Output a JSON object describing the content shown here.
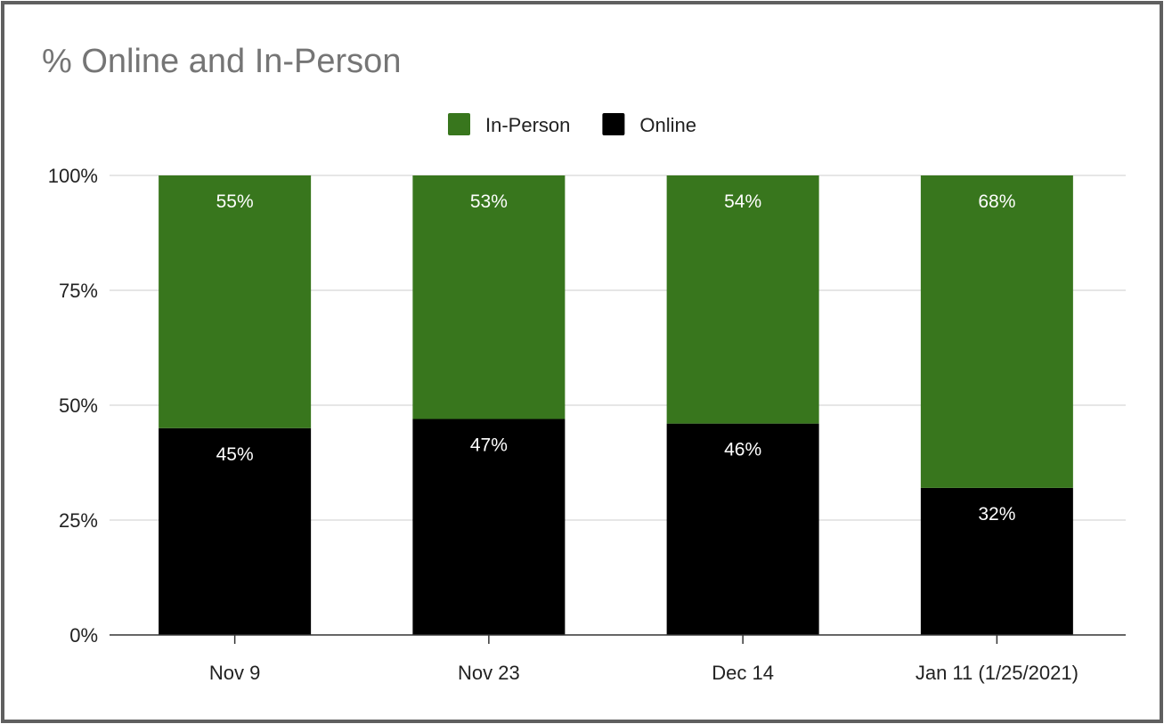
{
  "chart_data": {
    "type": "bar",
    "stacked": true,
    "title": "% Online and In-Person",
    "categories": [
      "Nov 9",
      "Nov 23",
      "Dec 14",
      "Jan 11 (1/25/2021)"
    ],
    "series": [
      {
        "name": "Online",
        "color": "#000000",
        "values": [
          45,
          47,
          46,
          32
        ],
        "labels": [
          "45%",
          "47%",
          "46%",
          "32%"
        ]
      },
      {
        "name": "In-Person",
        "color": "#38761d",
        "values": [
          55,
          53,
          54,
          68
        ],
        "labels": [
          "55%",
          "53%",
          "54%",
          "68%"
        ]
      }
    ],
    "legend": {
      "position": "top",
      "order": [
        "In-Person",
        "Online"
      ]
    },
    "ylim": [
      0,
      100
    ],
    "yticks": [
      0,
      25,
      50,
      75,
      100
    ],
    "ytick_labels": [
      "0%",
      "25%",
      "50%",
      "75%",
      "100%"
    ],
    "grid": true,
    "xlabel": "",
    "ylabel": ""
  }
}
